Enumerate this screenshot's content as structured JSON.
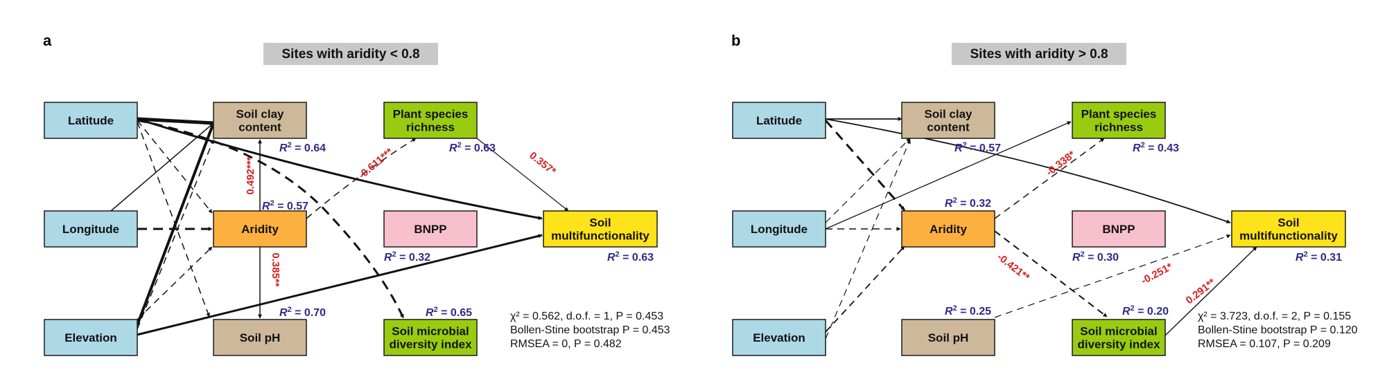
{
  "panels": [
    {
      "label": "a",
      "title": "Sites with aridity < 0.8",
      "nodes": {
        "latitude": [
          "Latitude"
        ],
        "longitude": [
          "Longitude"
        ],
        "elevation": [
          "Elevation"
        ],
        "clay": [
          "Soil clay",
          "content"
        ],
        "aridity": [
          "Aridity"
        ],
        "ph": [
          "Soil pH"
        ],
        "plant": [
          "Plant species",
          "richness"
        ],
        "bnpp": [
          "BNPP"
        ],
        "microbe": [
          "Soil microbial",
          "diversity index"
        ],
        "multi": [
          "Soil",
          "multifunctionality"
        ]
      },
      "r2": {
        "clay": "0.64",
        "aridity": "0.57",
        "ph": "0.70",
        "plant": "0.63",
        "bnpp": "0.32",
        "microbe": "0.65",
        "multi": "0.63"
      },
      "coefficients": {
        "aridity_clay": "0.492***",
        "aridity_ph": "0.385**",
        "aridity_plant": "-0.611***",
        "plant_multi": "0.357*"
      },
      "stats": [
        "χ² = 0.562, d.o.f. = 1, P = 0.453",
        "Bollen-Stine bootstrap P = 0.453",
        "RMSEA = 0, P = 0.482"
      ]
    },
    {
      "label": "b",
      "title": "Sites with aridity > 0.8",
      "nodes": {
        "latitude": [
          "Latitude"
        ],
        "longitude": [
          "Longitude"
        ],
        "elevation": [
          "Elevation"
        ],
        "clay": [
          "Soil clay",
          "content"
        ],
        "aridity": [
          "Aridity"
        ],
        "ph": [
          "Soil pH"
        ],
        "plant": [
          "Plant species",
          "richness"
        ],
        "bnpp": [
          "BNPP"
        ],
        "microbe": [
          "Soil microbial",
          "diversity index"
        ],
        "multi": [
          "Soil",
          "multifunctionality"
        ]
      },
      "r2": {
        "clay": "0.57",
        "aridity": "0.32",
        "ph": "0.25",
        "plant": "0.43",
        "bnpp": "0.30",
        "microbe": "0.20",
        "multi": "0.31"
      },
      "coefficients": {
        "aridity_plant": "-0.338*",
        "aridity_microbe": "-0.421**",
        "ph_multi": "-0.251*",
        "microbe_multi": "0.291**"
      },
      "stats": [
        "χ² = 3.723, d.o.f. = 2, P = 0.155",
        "Bollen-Stine bootstrap P = 0.120",
        "RMSEA = 0.107, P = 0.209"
      ]
    }
  ],
  "colors": {
    "predictor": "#add8e6",
    "soil": "#cdb99a",
    "aridity": "#fbb040",
    "plant": "#99cc11",
    "bnpp": "#f8c0cc",
    "multi": "#ffe31a",
    "title_bg": "#c8c8c8",
    "r2": "#2e2a8a",
    "coefficient": "#d42020"
  }
}
